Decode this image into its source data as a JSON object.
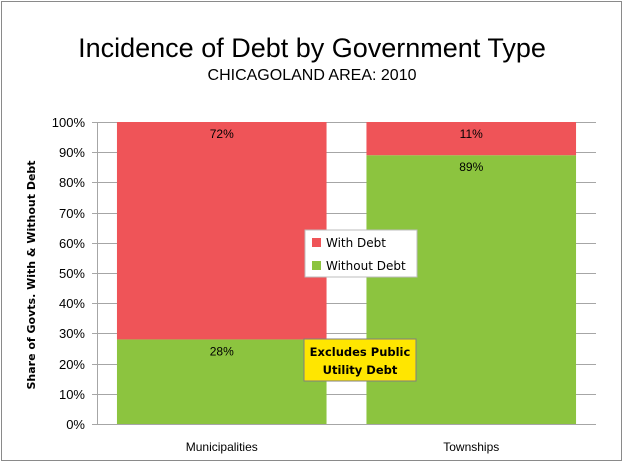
{
  "chart_data": {
    "type": "bar",
    "stacked": true,
    "percent_stacked": true,
    "title": "Incidence of Debt by Government Type",
    "subtitle": "CHICAGOLAND AREA: 2010",
    "ylabel": "Share of Govts. With & Without Debt",
    "xlabel": "",
    "ylim": [
      0,
      100
    ],
    "yticks": [
      0,
      10,
      20,
      30,
      40,
      50,
      60,
      70,
      80,
      90,
      100
    ],
    "ytick_labels": [
      "0%",
      "10%",
      "20%",
      "30%",
      "40%",
      "50%",
      "60%",
      "70%",
      "80%",
      "90%",
      "100%"
    ],
    "categories": [
      "Municipalities",
      "Townships"
    ],
    "series": [
      {
        "name": "Without Debt",
        "values": [
          28,
          89
        ],
        "labels": [
          "28%",
          "89%"
        ],
        "color": "#8cc43f"
      },
      {
        "name": "With Debt",
        "values": [
          72,
          11
        ],
        "labels": [
          "72%",
          "11%"
        ],
        "color": "#ef5458"
      }
    ],
    "legend": {
      "placement": "center",
      "entries": [
        "With Debt",
        "Without Debt"
      ]
    },
    "annotation": {
      "lines": [
        "Excludes Public",
        "Utility Debt"
      ],
      "background": "#ffe600"
    },
    "grid": true
  }
}
